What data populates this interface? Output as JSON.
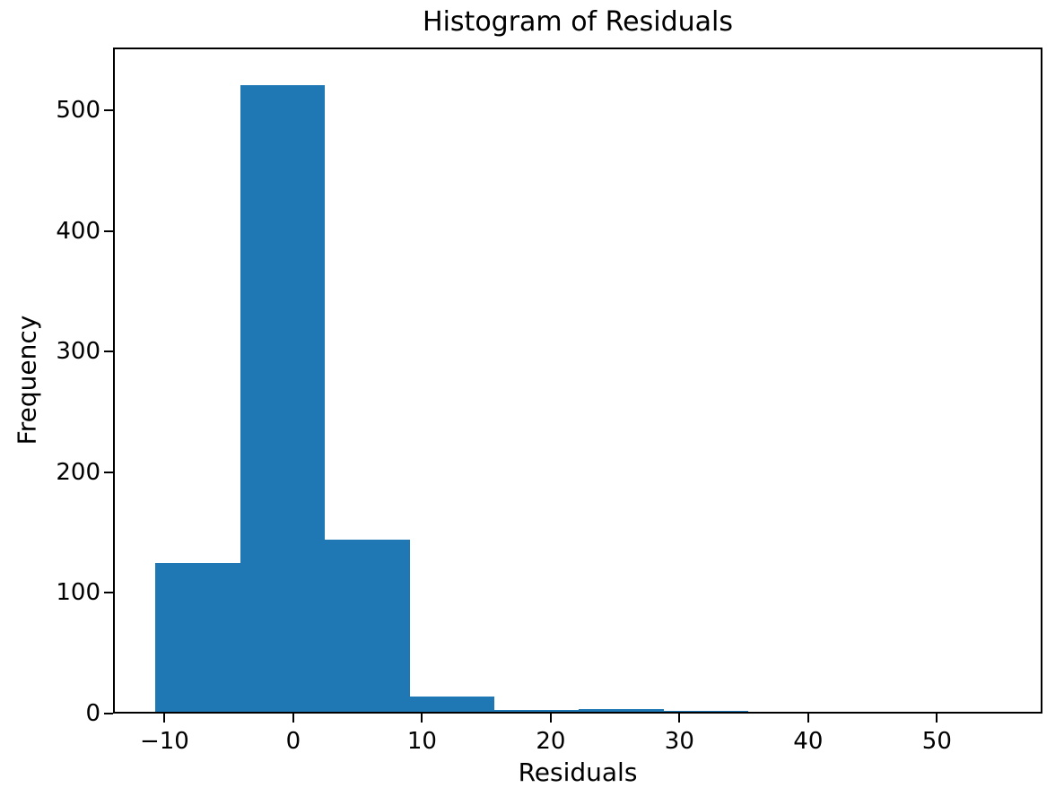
{
  "chart_data": {
    "type": "bar",
    "subtype": "histogram",
    "title": "Histogram of Residuals",
    "xlabel": "Residuals",
    "ylabel": "Frequency",
    "bar_color": "#1f77b4",
    "background_color": "#ffffff",
    "spine_color": "#000000",
    "grid": false,
    "legend": null,
    "bin_edges": [
      -10.7,
      -4.12,
      2.46,
      9.04,
      15.62,
      22.2,
      28.78,
      35.36,
      41.94,
      48.52,
      55.1
    ],
    "counts": [
      125,
      521,
      144,
      14,
      3,
      4,
      2,
      0,
      0,
      0
    ],
    "xticks": [
      -10,
      0,
      10,
      20,
      30,
      40,
      50
    ],
    "yticks": [
      0,
      100,
      200,
      300,
      400,
      500
    ],
    "xlim": [
      -14.0,
      58.2
    ],
    "ylim": [
      0,
      552
    ]
  }
}
